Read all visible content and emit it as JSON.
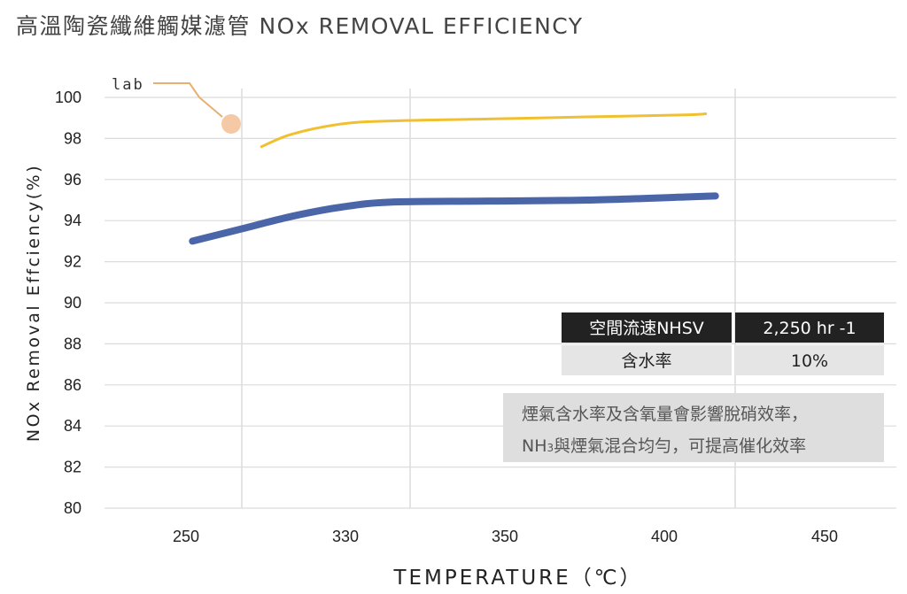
{
  "chart_data": {
    "type": "line",
    "title": "高溫陶瓷纖維觸媒濾管 NOx REMOVAL EFFICIENCY",
    "xlabel": "TEMPERATURE（℃）",
    "ylabel": "NOx Removal Effciency(%)",
    "ylim": [
      80,
      100
    ],
    "yticks": [
      80,
      82,
      84,
      86,
      88,
      90,
      92,
      94,
      96,
      98,
      100
    ],
    "xtick_labels": [
      "250",
      "330",
      "350",
      "400",
      "450"
    ],
    "grid": true,
    "series": [
      {
        "name": "lab",
        "color": "#f0c030",
        "points": [
          [
            0.04,
            97.6
          ],
          [
            0.1,
            98.2
          ],
          [
            0.2,
            98.7
          ],
          [
            0.3,
            98.85
          ],
          [
            0.5,
            98.95
          ],
          [
            0.7,
            99.05
          ],
          [
            0.9,
            99.15
          ],
          [
            0.94,
            99.2
          ]
        ]
      },
      {
        "name": "",
        "color": "#4a65a8",
        "points": [
          [
            -0.1,
            93.0
          ],
          [
            0.0,
            93.6
          ],
          [
            0.1,
            94.2
          ],
          [
            0.2,
            94.65
          ],
          [
            0.3,
            94.9
          ],
          [
            0.5,
            94.95
          ],
          [
            0.7,
            95.0
          ],
          [
            0.9,
            95.15
          ],
          [
            0.96,
            95.2
          ]
        ]
      }
    ]
  },
  "table": {
    "rows": [
      {
        "label": "空間流速NHSV",
        "value": "2,250 hr -1"
      },
      {
        "label": "含水率",
        "value": "10%"
      }
    ]
  },
  "note": {
    "line1": "煙氣含水率及含氧量會影響脫硝效率，",
    "line2_pre": "NH",
    "line2_sub": "3",
    "line2_post": "與煙氣混合均勻，可提高催化效率"
  },
  "series_label": "lab",
  "colors": {
    "lab_line": "#f0c030",
    "field_line": "#4a65a8",
    "marker": "#f5c9a6",
    "leader": "#e8b070",
    "table_header_bg": "#222222",
    "table_row_bg": "#e5e5e5",
    "note_bg": "#dedede",
    "grid": "#dcdcdc"
  }
}
